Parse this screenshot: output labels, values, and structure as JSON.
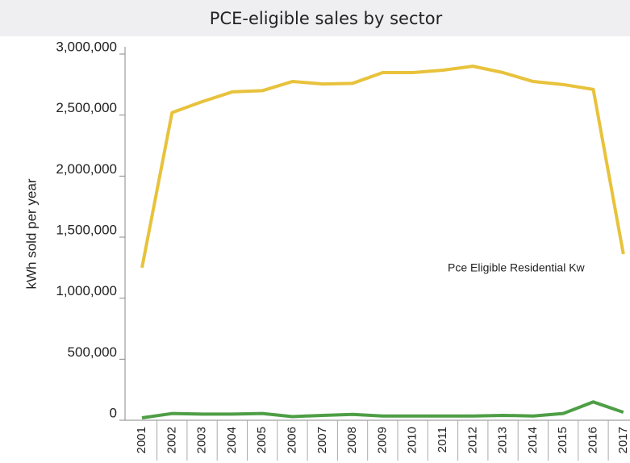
{
  "chart_data": {
    "type": "line",
    "title": "PCE-eligible sales by sector",
    "y_label": "kWh sold per year",
    "categories": [
      "2001",
      "2002",
      "2003",
      "2004",
      "2005",
      "2006",
      "2007",
      "2008",
      "2009",
      "2010",
      "2011",
      "2012",
      "2013",
      "2014",
      "2015",
      "2016",
      "2017"
    ],
    "series": [
      {
        "name": "Pce Eligible Residential Kw",
        "color": "#e8c23c",
        "values": [
          1250000,
          2520000,
          2610000,
          2690000,
          2700000,
          2775000,
          2755000,
          2760000,
          2848000,
          2848000,
          2868000,
          2900000,
          2848000,
          2775000,
          2750000,
          2710000,
          1361000
        ]
      },
      {
        "color": "#4e9e45",
        "values": [
          20000,
          55000,
          50000,
          50000,
          55000,
          30000,
          40000,
          48000,
          35000,
          35000,
          35000,
          35000,
          40000,
          35000,
          55000,
          150000,
          65000
        ]
      }
    ],
    "ylim": [
      0,
      3000000
    ],
    "yticks": [
      0,
      {
        "value": 500000,
        "label": "500,000"
      },
      {
        "value": 1000000,
        "label": "1,000,000"
      },
      {
        "value": 1500000,
        "label": "1,500,000"
      },
      {
        "value": 2000000,
        "label": "2,000,000"
      },
      {
        "value": 2500000,
        "label": "2,500,000"
      },
      {
        "value": 3000000,
        "label": "3,000,000"
      }
    ]
  }
}
